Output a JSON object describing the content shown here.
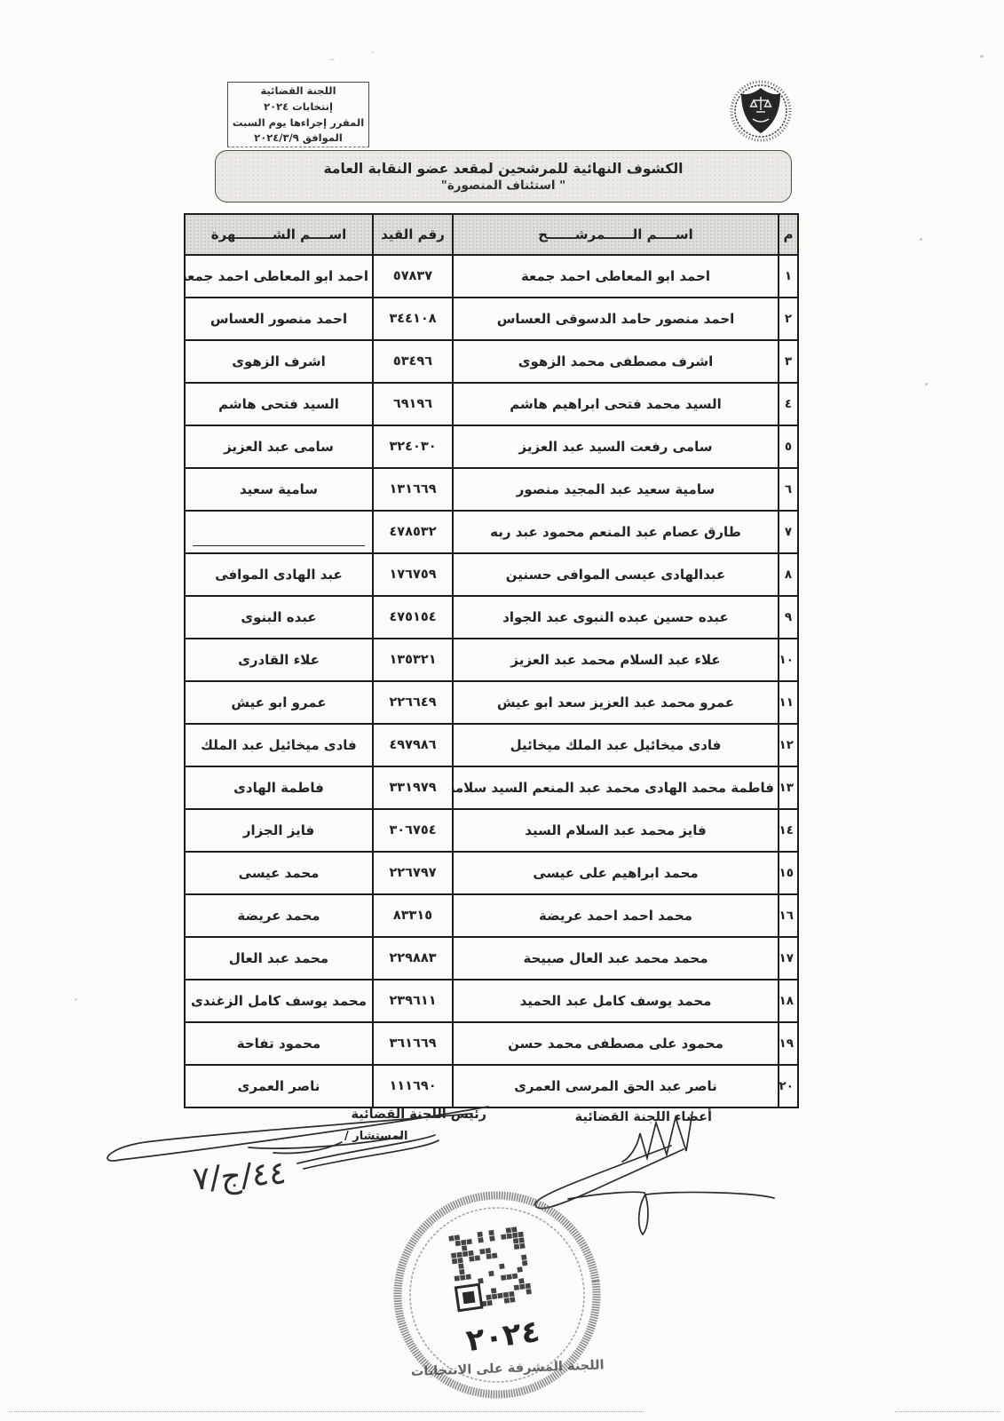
{
  "header_box": {
    "lines": [
      "اللجنة القضائية",
      "إنتخابات ٢٠٢٤",
      "المقرر إجراءها يوم السبت",
      "الموافق ٢٠٢٤/٣/٩"
    ]
  },
  "logo": {
    "name": "bar-association-emblem"
  },
  "title": {
    "line1": "الكشوف النهائية للمرشحين لمقعد عضو النقابة العامة",
    "line2": "\" استئناف المنصورة\""
  },
  "table": {
    "headers": {
      "serial": "م",
      "candidate_name": "اســــم الــــــمرشــــــح",
      "registration_no": "رقم القيد",
      "known_name": "اســــم الشــــــــهرة"
    },
    "rows": [
      {
        "serial": "١",
        "name": "احمد ابو المعاطى احمد جمعة",
        "reg": "٥٧٨٣٧",
        "known": "احمد ابو المعاطى احمد جمعة"
      },
      {
        "serial": "٢",
        "name": "احمد منصور حامد الدسوقى العساس",
        "reg": "٣٤٤١٠٨",
        "known": "احمد منصور العساس"
      },
      {
        "serial": "٣",
        "name": "اشرف مصطفى محمد الزهوى",
        "reg": "٥٣٤٩٦",
        "known": "اشرف الزهوى"
      },
      {
        "serial": "٤",
        "name": "السيد محمد فتحى ابراهيم هاشم",
        "reg": "٦٩١٩٦",
        "known": "السيد فتحى هاشم"
      },
      {
        "serial": "٥",
        "name": "سامى رفعت السيد عبد العزيز",
        "reg": "٣٢٤٠٣٠",
        "known": "سامى عبد العزيز"
      },
      {
        "serial": "٦",
        "name": "سامية سعيد عبد المجيد منصور",
        "reg": "١٣١٦٦٩",
        "known": "سامية سعيد"
      },
      {
        "serial": "٧",
        "name": "طارق عصام عبد المنعم محمود عبد ربه",
        "reg": "٤٧٨٥٣٢",
        "known": ""
      },
      {
        "serial": "٨",
        "name": "عبدالهادى عيسى الموافى حسنين",
        "reg": "١٧٦٧٥٩",
        "known": "عبد الهادى الموافى"
      },
      {
        "serial": "٩",
        "name": "عبده حسين عبده النبوى عبد الجواد",
        "reg": "٤٧٥١٥٤",
        "known": "عبده البنوى"
      },
      {
        "serial": "١٠",
        "name": "علاء عبد السلام محمد عبد العزيز",
        "reg": "١٣٥٣٢١",
        "known": "علاء القادرى"
      },
      {
        "serial": "١١",
        "name": "عمرو محمد عبد العزيز سعد ابو عيش",
        "reg": "٢٢٦٦٤٩",
        "known": "عمرو ابو عيش"
      },
      {
        "serial": "١٢",
        "name": "فادى ميخائيل عبد الملك ميخائيل",
        "reg": "٤٩٧٩٨٦",
        "known": "فادى ميخائيل عبد الملك"
      },
      {
        "serial": "١٣",
        "name": "فاطمة محمد الهادى محمد عبد المنعم السيد سلامة",
        "reg": "٣٣١٩٧٩",
        "known": "فاطمة الهادى"
      },
      {
        "serial": "١٤",
        "name": "فايز محمد عبد السلام السيد",
        "reg": "٣٠٦٧٥٤",
        "known": "فايز الجزار"
      },
      {
        "serial": "١٥",
        "name": "محمد ابراهيم على عيسى",
        "reg": "٢٢٦٧٩٧",
        "known": "محمد عيسى"
      },
      {
        "serial": "١٦",
        "name": "محمد احمد احمد عريضة",
        "reg": "٨٣٣١٥",
        "known": "محمد عريضة"
      },
      {
        "serial": "١٧",
        "name": "محمد محمد عبد العال صبيحة",
        "reg": "٢٢٩٨٨٣",
        "known": "محمد عبد العال"
      },
      {
        "serial": "١٨",
        "name": "محمد يوسف كامل عبد الحميد",
        "reg": "٢٣٩٦١١",
        "known": "محمد يوسف كامل الزغندى"
      },
      {
        "serial": "١٩",
        "name": "محمود على مصطفى محمد حسن",
        "reg": "٣٦١٦٦٩",
        "known": "محمود تفاحة"
      },
      {
        "serial": "٢٠",
        "name": "ناصر عبد الحق المرسى العمرى",
        "reg": "١١١٦٩٠",
        "known": "ناصر العمرى"
      }
    ]
  },
  "footer": {
    "chairman_label": "رئيس اللجنة القضائية",
    "counselor_label": "المستشار /",
    "members_label": "أعضاء اللجنة القضائية",
    "handwritten_ref": "٤٤/ج/٧",
    "stamp": {
      "year": "٢٠٢٤",
      "ring_text": "اللجنة المشرفة على الانتخابات"
    }
  }
}
